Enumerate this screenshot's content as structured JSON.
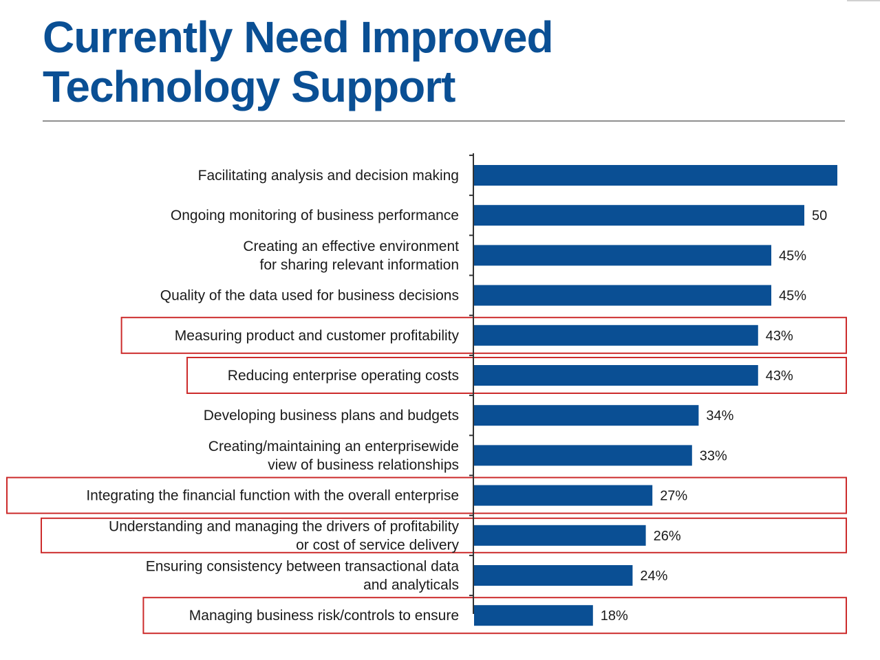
{
  "title": {
    "line1": "Currently Need Improved",
    "line2": "Technology Support"
  },
  "colors": {
    "title": "#0a4f94",
    "bar": "#0a4f94",
    "highlight_box": "#cc2a2a",
    "rule": "#8f8f8f"
  },
  "chart_data": {
    "type": "bar",
    "orientation": "horizontal",
    "categories": [
      [
        "Facilitating analysis and decision making"
      ],
      [
        "Ongoing monitoring of business performance"
      ],
      [
        "Creating an effective environment",
        "for sharing relevant information"
      ],
      [
        "Quality of the data used for business decisions"
      ],
      [
        "Measuring product and customer profitability"
      ],
      [
        "Reducing enterprise operating costs"
      ],
      [
        "Developing business plans and budgets"
      ],
      [
        "Creating/maintaining an enterprisewide",
        "view of business relationships"
      ],
      [
        "Integrating the financial function with the overall enterprise"
      ],
      [
        "Understanding and managing the drivers of profitability",
        "or cost of service delivery"
      ],
      [
        "Ensuring consistency between transactional data",
        "and analyticals"
      ],
      [
        "Managing business risk/controls to ensure"
      ]
    ],
    "values": [
      55,
      50,
      45,
      45,
      43,
      43,
      34,
      33,
      27,
      26,
      24,
      18
    ],
    "value_labels": [
      "",
      "50",
      "45%",
      "45%",
      "43%",
      "43%",
      "34%",
      "33%",
      "27%",
      "26%",
      "24%",
      "18%"
    ],
    "highlighted": [
      false,
      false,
      false,
      false,
      true,
      true,
      false,
      false,
      true,
      true,
      false,
      true
    ],
    "xlim": [
      0,
      55
    ],
    "title": "Currently Need Improved Technology Support",
    "xlabel": "",
    "ylabel": "",
    "grid": false,
    "legend": "none"
  }
}
